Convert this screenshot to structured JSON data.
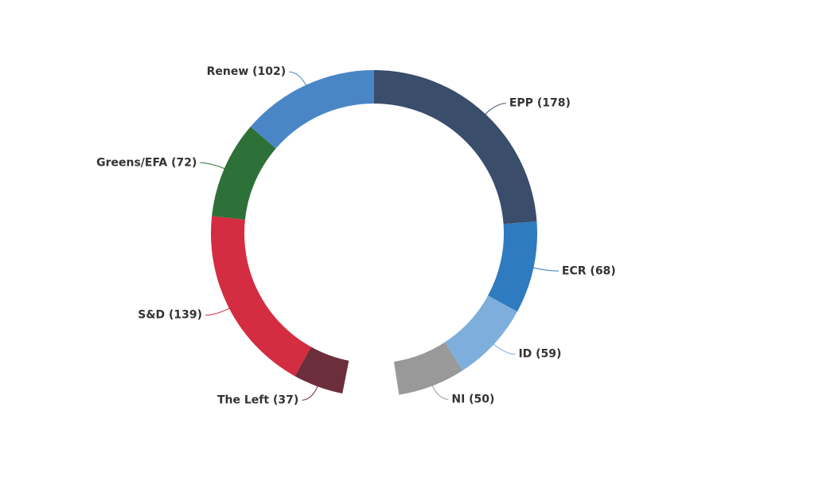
{
  "chart_data": {
    "type": "donut",
    "categories": [
      "EPP (178)",
      "ECR (68)",
      "ID (59)",
      "NI (50)",
      "The Left (37)",
      "S&D (139)",
      "Greens/EFA (72)",
      "Renew (102)"
    ],
    "values": [
      178,
      68,
      59,
      50,
      37,
      139,
      72,
      102
    ],
    "colors": [
      "#3a4d6b",
      "#2e7bbf",
      "#7eaedb",
      "#999999",
      "#6b2e3a",
      "#d42c41",
      "#2d7038",
      "#4a86c6"
    ]
  }
}
